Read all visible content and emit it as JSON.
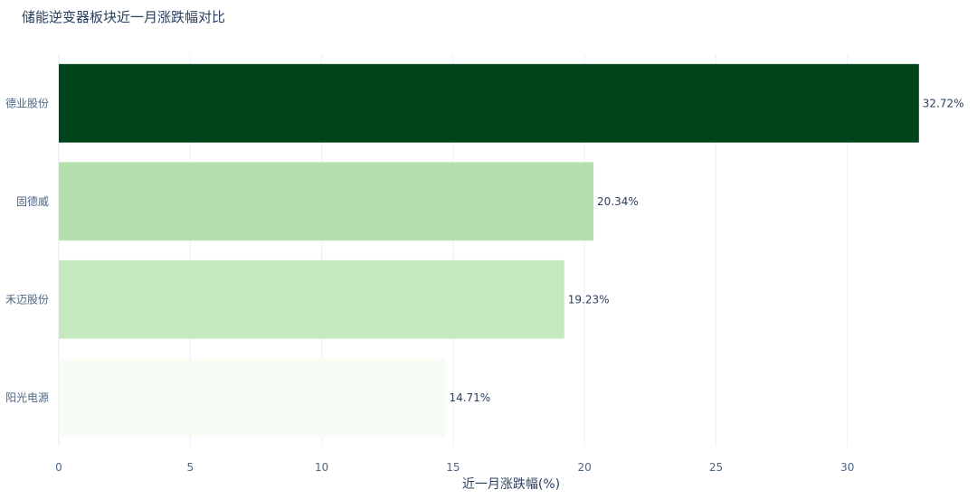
{
  "chart_data": {
    "type": "bar",
    "orientation": "horizontal",
    "title": "储能逆变器板块近一月涨跌幅对比",
    "xlabel": "近一月涨跌幅(%)",
    "ylabel": "",
    "xlim": [
      0,
      34
    ],
    "xticks": [
      "0",
      "5",
      "10",
      "15",
      "20",
      "25",
      "30"
    ],
    "grid": true,
    "legend": "none",
    "bars": [
      {
        "category": "德业股份",
        "value": 32.72,
        "label": "32.72%",
        "color": "#00441b"
      },
      {
        "category": "固德威",
        "value": 20.34,
        "label": "20.34%",
        "color": "#b4e0ad"
      },
      {
        "category": "禾迈股份",
        "value": 19.23,
        "label": "19.23%",
        "color": "#c7e9c0"
      },
      {
        "category": "阳光电源",
        "value": 14.71,
        "label": "14.71%",
        "color": "#f7fcf5"
      }
    ]
  }
}
